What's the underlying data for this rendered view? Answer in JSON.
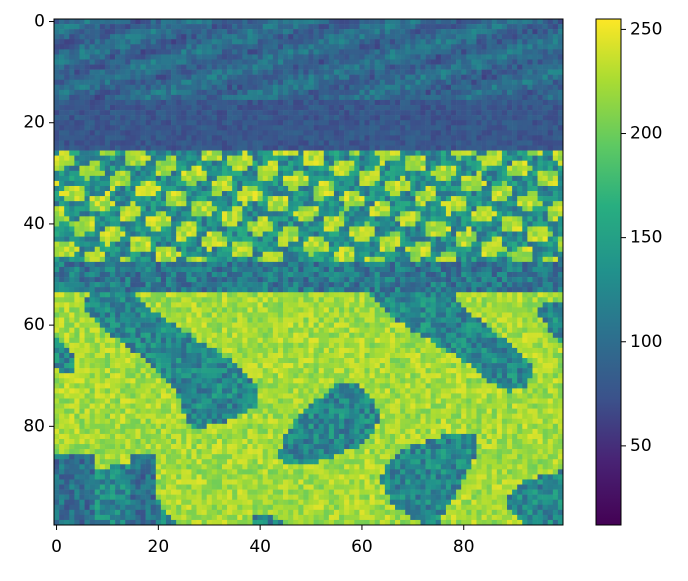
{
  "chart_data": {
    "type": "heatmap",
    "title": "",
    "xlabel": "",
    "ylabel": "",
    "grid": false,
    "image_size": [
      100,
      100
    ],
    "x_ticks": [
      0,
      20,
      40,
      60,
      80
    ],
    "y_ticks": [
      0,
      20,
      40,
      60,
      80
    ],
    "colorbar": {
      "colormap": "viridis",
      "range": [
        12,
        255
      ],
      "ticks": [
        50,
        100,
        150,
        200,
        250
      ]
    },
    "row_bands": [
      {
        "rows": [
          0,
          15
        ],
        "mean": 95,
        "description_level": "sky"
      },
      {
        "rows": [
          16,
          25
        ],
        "mean": 78,
        "description_level": "horizon"
      },
      {
        "rows": [
          26,
          47
        ],
        "mean": 200,
        "description_level": "distant_flowers"
      },
      {
        "rows": [
          48,
          53
        ],
        "mean": 110,
        "description_level": "dark_band"
      },
      {
        "rows": [
          54,
          99
        ],
        "mean": 205,
        "description_level": "near_tulips"
      }
    ]
  }
}
